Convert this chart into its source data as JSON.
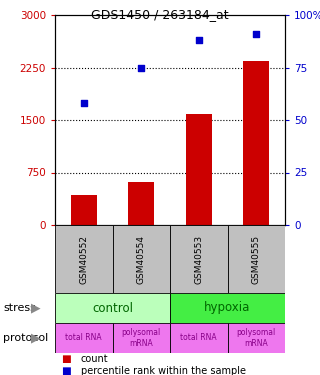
{
  "title": "GDS1450 / 263184_at",
  "samples": [
    "GSM40552",
    "GSM40554",
    "GSM40553",
    "GSM40555"
  ],
  "counts": [
    430,
    620,
    1580,
    2350
  ],
  "percentiles": [
    58,
    75,
    88,
    91
  ],
  "ylim_left": [
    0,
    3000
  ],
  "ylim_right": [
    0,
    100
  ],
  "yticks_left": [
    0,
    750,
    1500,
    2250,
    3000
  ],
  "yticks_right": [
    0,
    25,
    50,
    75,
    100
  ],
  "ytick_labels_right": [
    "0",
    "25",
    "50",
    "75",
    "100%"
  ],
  "bar_color": "#cc0000",
  "scatter_color": "#0000cc",
  "bar_width": 0.45,
  "stress_colors": [
    "#bbffbb",
    "#44ee44"
  ],
  "protocol_labels": [
    "total RNA",
    "polysomal\nmRNA",
    "total RNA",
    "polysomal\nmRNA"
  ],
  "protocol_color": "#ee77ee",
  "sample_bg_color": "#c0c0c0",
  "left_label_color": "#cc0000",
  "right_label_color": "#0000cc",
  "legend_count_color": "#cc0000",
  "legend_pct_color": "#0000cc",
  "dotted_ticks": [
    750,
    1500,
    2250
  ]
}
